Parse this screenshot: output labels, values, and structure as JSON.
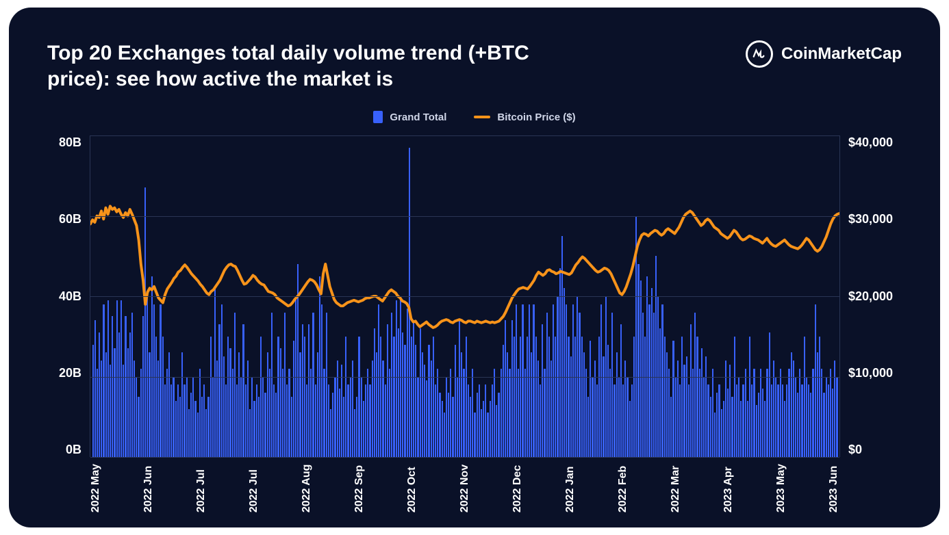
{
  "title": "Top 20 Exchanges total daily volume trend (+BTC price): see how active the market is",
  "brand": "CoinMarketCap",
  "legend": {
    "bar_label": "Grand Total",
    "line_label": "Bitcoin Price ($)"
  },
  "chart": {
    "type": "bar+line",
    "background_color": "#0a1128",
    "grid_color": "#2a3555",
    "bar_color": "#3861fb",
    "line_color": "#f7931a",
    "line_width": 4,
    "y_left": {
      "label": "",
      "min": 0,
      "max": 80,
      "ticks": [
        "80B",
        "60B",
        "40B",
        "20B",
        "0B"
      ]
    },
    "y_right": {
      "label": "",
      "min": 0,
      "max": 40000,
      "ticks": [
        "$40,000",
        "$30,000",
        "$20,000",
        "$10,000",
        "$0"
      ]
    },
    "x_ticks": [
      "2022 May",
      "2022 Jun",
      "2022 Jul",
      "2022 Jul",
      "2022 Aug",
      "2022 Sep",
      "2022 Oct",
      "2022 Nov",
      "2022 Dec",
      "2022 Jan",
      "2022 Feb",
      "2022 Mar",
      "2023 Apr",
      "2023 May",
      "2023 Jun"
    ],
    "bars_values": [
      28,
      34,
      22,
      31,
      24,
      38,
      26,
      39,
      23,
      35,
      27,
      39,
      31,
      39,
      23,
      35,
      27,
      31,
      36,
      24,
      20,
      15,
      22,
      35,
      67,
      40,
      26,
      45,
      38,
      30,
      24,
      38,
      30,
      18,
      22,
      26,
      18,
      20,
      14,
      18,
      15,
      26,
      18,
      20,
      12,
      16,
      20,
      14,
      11,
      22,
      15,
      18,
      12,
      15,
      30,
      20,
      42,
      24,
      33,
      38,
      25,
      18,
      30,
      27,
      22,
      36,
      18,
      26,
      20,
      33,
      18,
      24,
      12,
      20,
      14,
      18,
      15,
      30,
      20,
      16,
      26,
      22,
      36,
      18,
      16,
      30,
      27,
      22,
      36,
      18,
      22,
      15,
      29,
      40,
      48,
      26,
      33,
      30,
      18,
      33,
      22,
      36,
      18,
      26,
      45,
      38,
      22,
      36,
      18,
      12,
      16,
      20,
      24,
      17,
      23,
      15,
      30,
      18,
      20,
      24,
      12,
      15,
      30,
      20,
      14,
      18,
      22,
      18,
      24,
      32,
      26,
      38,
      30,
      24,
      18,
      33,
      22,
      36,
      30,
      39,
      32,
      40,
      31,
      28,
      37,
      77,
      30,
      34,
      28,
      20,
      32,
      26,
      23,
      19,
      28,
      24,
      30,
      18,
      22,
      16,
      14,
      11,
      20,
      16,
      22,
      15,
      28,
      20,
      34,
      26,
      22,
      30,
      18,
      15,
      22,
      11,
      16,
      18,
      12,
      14,
      18,
      11,
      14,
      18,
      22,
      13,
      16,
      22,
      28,
      34,
      26,
      22,
      34,
      30,
      38,
      22,
      30,
      38,
      22,
      30,
      38,
      26,
      38,
      30,
      24,
      18,
      33,
      22,
      36,
      30,
      24,
      38,
      30,
      40,
      47,
      55,
      42,
      38,
      30,
      25,
      38,
      30,
      40,
      36,
      30,
      26,
      22,
      15,
      29,
      20,
      24,
      18,
      30,
      38,
      25,
      40,
      28,
      22,
      36,
      18,
      26,
      20,
      33,
      18,
      24,
      20,
      14,
      18,
      30,
      60,
      48,
      44,
      36,
      30,
      45,
      38,
      42,
      36,
      50,
      40,
      32,
      38,
      30,
      26,
      22,
      15,
      29,
      20,
      24,
      18,
      30,
      23,
      25,
      18,
      33,
      22,
      36,
      30,
      22,
      27,
      20,
      25,
      18,
      15,
      22,
      11,
      16,
      18,
      12,
      14,
      24,
      17,
      23,
      15,
      30,
      18,
      20,
      14,
      18,
      22,
      14,
      30,
      18,
      22,
      13,
      16,
      22,
      17,
      14,
      22,
      31,
      18,
      24,
      20,
      18,
      22,
      18,
      14,
      18,
      22,
      26,
      24,
      20,
      16,
      22,
      18,
      30,
      20,
      18,
      16,
      22,
      38,
      26,
      30,
      22,
      16,
      20,
      18,
      22,
      17,
      24,
      20
    ],
    "btc_price": [
      29000,
      29500,
      29200,
      30000,
      29800,
      30600,
      29600,
      31000,
      30200,
      31200,
      30800,
      31000,
      30500,
      30800,
      30200,
      29800,
      30400,
      30000,
      30800,
      30200,
      29500,
      28800,
      27000,
      24000,
      22000,
      19000,
      20500,
      21000,
      20800,
      21200,
      20500,
      19800,
      19500,
      19200,
      20200,
      20900,
      21300,
      21700,
      22200,
      22500,
      23000,
      23200,
      23600,
      23900,
      23600,
      23200,
      22800,
      22500,
      22200,
      21900,
      21500,
      21200,
      20800,
      20400,
      20200,
      20600,
      20800,
      21200,
      21600,
      22000,
      22600,
      23200,
      23600,
      23900,
      24000,
      23800,
      23700,
      23200,
      22600,
      22000,
      21500,
      21600,
      21900,
      22200,
      22600,
      22400,
      22000,
      21700,
      21500,
      21400,
      21000,
      20600,
      20500,
      20400,
      20200,
      19800,
      19600,
      19400,
      19200,
      19000,
      18800,
      18900,
      19200,
      19600,
      19900,
      20200,
      20600,
      21000,
      21400,
      21800,
      22100,
      22000,
      21800,
      21400,
      20800,
      20300,
      22800,
      24000,
      22600,
      21200,
      20400,
      19600,
      19200,
      19000,
      18800,
      18800,
      19000,
      19200,
      19300,
      19400,
      19500,
      19400,
      19300,
      19400,
      19500,
      19700,
      19800,
      19800,
      19900,
      20000,
      20000,
      19800,
      19600,
      19400,
      19800,
      20200,
      20600,
      20800,
      20600,
      20400,
      20000,
      19800,
      19400,
      19300,
      19100,
      18600,
      17200,
      16800,
      16900,
      16500,
      16200,
      16400,
      16600,
      16800,
      16500,
      16300,
      16100,
      16200,
      16400,
      16700,
      16900,
      17000,
      17100,
      17000,
      16800,
      16700,
      16900,
      17000,
      17100,
      17000,
      16800,
      16700,
      16900,
      16900,
      16800,
      16700,
      16900,
      16800,
      16700,
      16800,
      16900,
      16800,
      16700,
      16800,
      16700,
      16800,
      16900,
      17200,
      17500,
      18000,
      18600,
      19200,
      19800,
      20200,
      20600,
      20900,
      21000,
      21100,
      21000,
      20900,
      21200,
      21600,
      22000,
      22600,
      23000,
      22800,
      22600,
      22800,
      23200,
      23300,
      23100,
      23000,
      22800,
      22900,
      23100,
      23000,
      22900,
      22800,
      22700,
      22900,
      23400,
      23900,
      24200,
      24600,
      24900,
      24700,
      24400,
      24100,
      23800,
      23500,
      23200,
      23000,
      23100,
      23300,
      23500,
      23400,
      23200,
      22800,
      22200,
      21600,
      21000,
      20400,
      20200,
      20600,
      21200,
      22000,
      22800,
      23800,
      25000,
      26200,
      27000,
      27600,
      27800,
      27700,
      27500,
      27800,
      28000,
      28200,
      28100,
      27800,
      27600,
      27800,
      28200,
      28400,
      28200,
      28000,
      27800,
      28200,
      28600,
      29200,
      29800,
      30200,
      30400,
      30600,
      30400,
      30000,
      29600,
      29200,
      28800,
      29000,
      29400,
      29600,
      29400,
      29000,
      28600,
      28400,
      28200,
      27800,
      27600,
      27400,
      27200,
      27400,
      27800,
      28200,
      28000,
      27600,
      27200,
      27000,
      27100,
      27300,
      27500,
      27400,
      27200,
      27100,
      27000,
      26800,
      26600,
      26900,
      27200,
      26800,
      26500,
      26300,
      26200,
      26400,
      26600,
      26800,
      27000,
      26700,
      26400,
      26200,
      26100,
      26000,
      25900,
      26100,
      26400,
      26800,
      27200,
      27000,
      26600,
      26200,
      25800,
      25600,
      25800,
      26200,
      26800,
      27400,
      28200,
      29000,
      29600,
      30000,
      30200,
      30300
    ],
    "title_fontsize": 30,
    "tick_fontsize": 18
  }
}
